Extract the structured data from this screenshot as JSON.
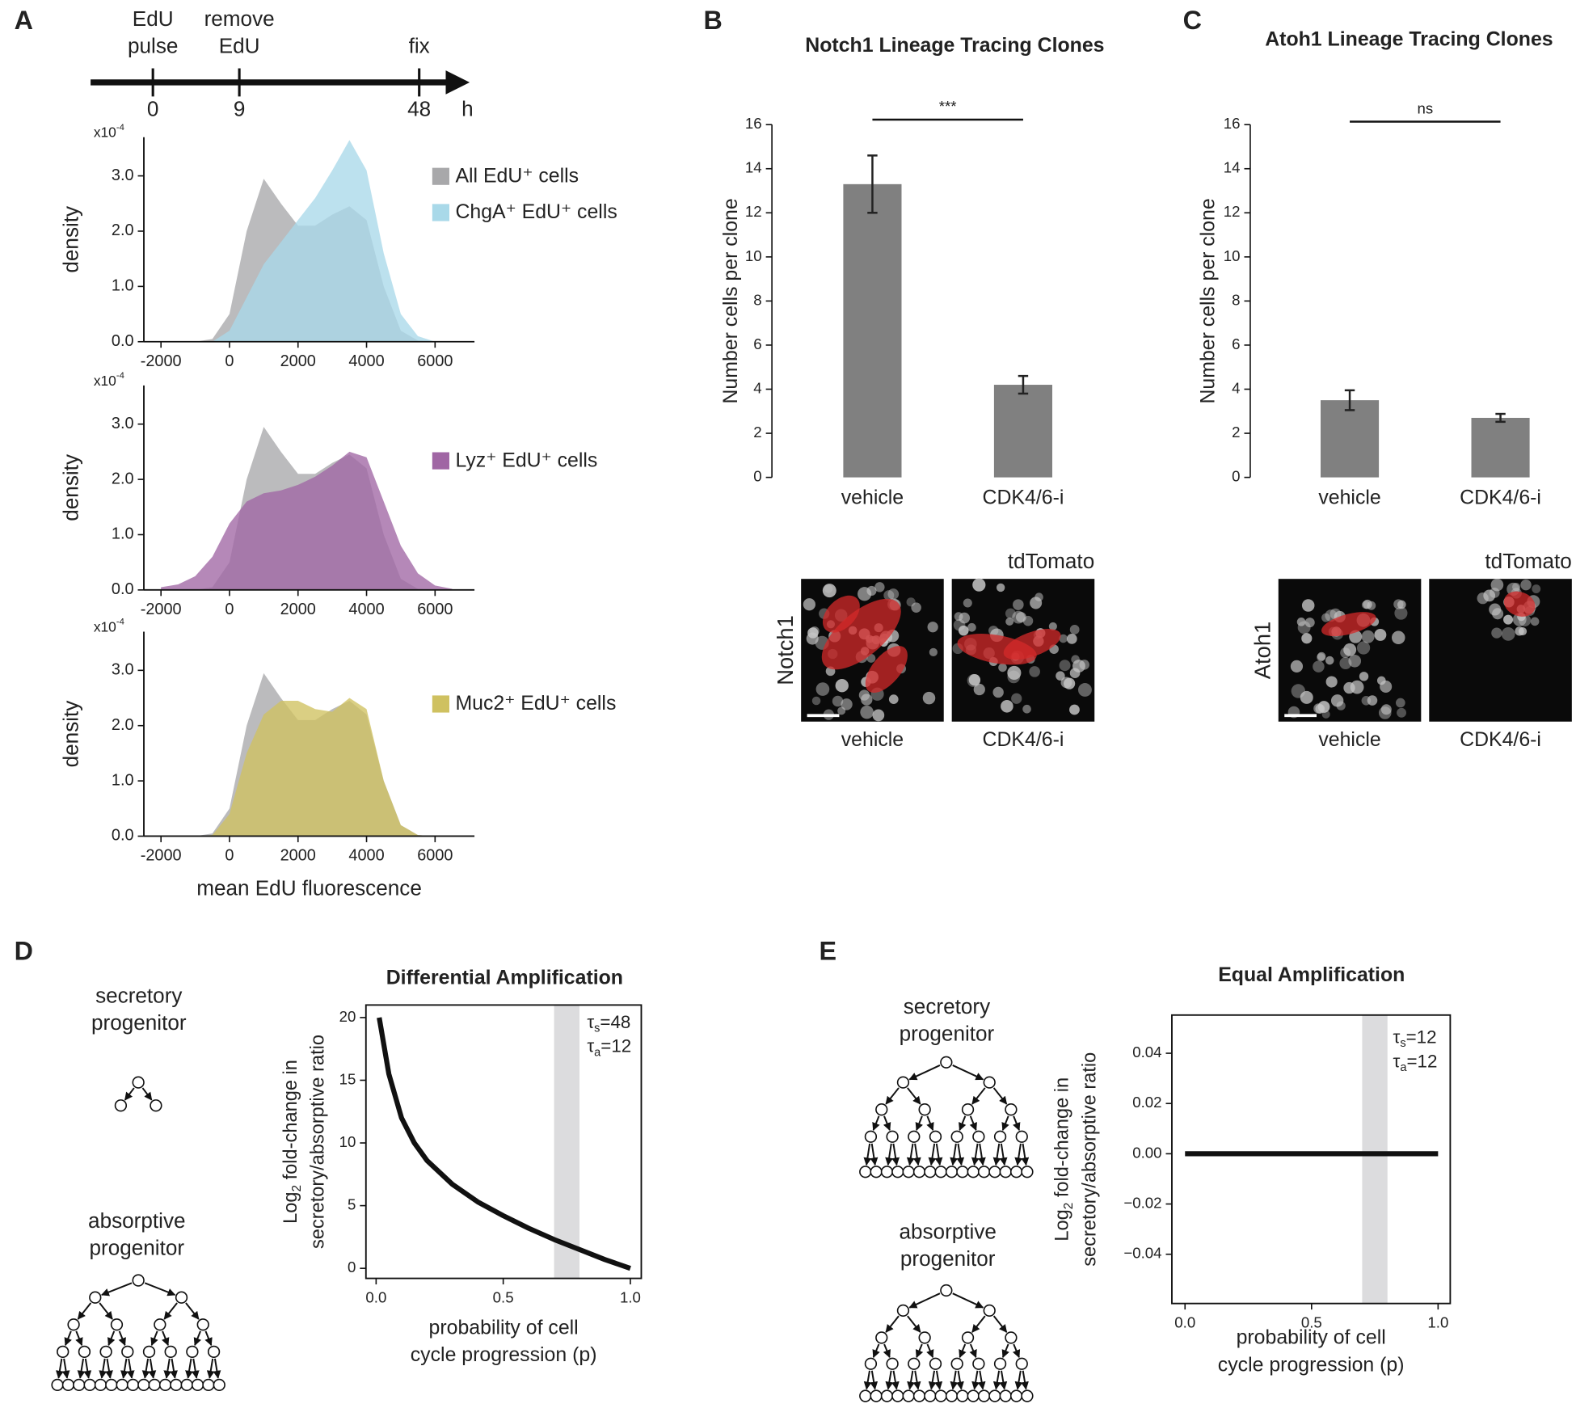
{
  "panel_labels": [
    "A",
    "B",
    "C",
    "D",
    "E"
  ],
  "timeline": {
    "events": [
      {
        "label": [
          "EdU",
          "pulse"
        ],
        "tick": 0
      },
      {
        "label": [
          "remove",
          "EdU"
        ],
        "tick": 9
      },
      {
        "label": [
          "fix"
        ],
        "tick": 48
      }
    ],
    "unit": "h"
  },
  "chart_data": [
    {
      "type": "area",
      "ylabel": "density",
      "y_scale": {
        "base": "x10",
        "exponent": "-4"
      },
      "x": [
        -2000,
        -1500,
        -1000,
        -500,
        0,
        500,
        1000,
        1500,
        2000,
        2500,
        3000,
        3500,
        4000,
        4500,
        5000,
        5500,
        6000,
        6500
      ],
      "series": [
        {
          "name": "All EdU⁺ cells",
          "color": "#a8a8aa",
          "values": [
            0,
            0,
            0,
            0.05,
            0.5,
            2.0,
            2.95,
            2.5,
            2.1,
            2.1,
            2.3,
            2.45,
            2.2,
            1.0,
            0.2,
            0.02,
            0,
            0
          ]
        },
        {
          "name": "ChgA⁺ EdU⁺ cells",
          "color": "#a9d9e9",
          "values": [
            0,
            0,
            0,
            0,
            0.2,
            0.8,
            1.4,
            1.8,
            2.2,
            2.6,
            3.1,
            3.65,
            3.1,
            1.6,
            0.5,
            0.1,
            0,
            0
          ]
        }
      ],
      "xlim": [
        -2500,
        7150
      ],
      "ylim": [
        0,
        3.7
      ],
      "xticks": [
        -2000,
        0,
        2000,
        4000,
        6000
      ],
      "yticks": [
        {
          "value": 0,
          "label": "0.0"
        },
        {
          "value": 1,
          "label": "1.0"
        },
        {
          "value": 2,
          "label": "2.0"
        },
        {
          "value": 3,
          "label": "3.0"
        }
      ]
    },
    {
      "type": "area",
      "ylabel": "density",
      "y_scale": {
        "base": "x10",
        "exponent": "-4"
      },
      "x": [
        -2000,
        -1500,
        -1000,
        -500,
        0,
        500,
        1000,
        1500,
        2000,
        2500,
        3000,
        3500,
        4000,
        4500,
        5000,
        5500,
        6000,
        6500
      ],
      "series": [
        {
          "color": "#a8a8aa",
          "values": [
            0,
            0,
            0,
            0.05,
            0.5,
            2.0,
            2.95,
            2.5,
            2.1,
            2.1,
            2.3,
            2.45,
            2.2,
            1.0,
            0.2,
            0.02,
            0,
            0
          ]
        },
        {
          "name": "Lyz⁺ EdU⁺ cells",
          "color": "#a066a4",
          "values": [
            0.05,
            0.1,
            0.25,
            0.6,
            1.2,
            1.6,
            1.75,
            1.8,
            1.9,
            2.05,
            2.25,
            2.5,
            2.4,
            1.6,
            0.8,
            0.3,
            0.08,
            0.02
          ]
        }
      ],
      "xlim": [
        -2500,
        7150
      ],
      "ylim": [
        0,
        3.7
      ],
      "xticks": [
        -2000,
        0,
        2000,
        4000,
        6000
      ],
      "yticks": [
        {
          "value": 0,
          "label": "0.0"
        },
        {
          "value": 1,
          "label": "1.0"
        },
        {
          "value": 2,
          "label": "2.0"
        },
        {
          "value": 3,
          "label": "3.0"
        }
      ]
    },
    {
      "type": "area",
      "ylabel": "density",
      "xlabel": "mean EdU fluorescence",
      "y_scale": {
        "base": "x10",
        "exponent": "-4"
      },
      "x": [
        -2000,
        -1500,
        -1000,
        -500,
        0,
        500,
        1000,
        1500,
        2000,
        2500,
        3000,
        3500,
        4000,
        4500,
        5000,
        5500,
        6000,
        6500
      ],
      "series": [
        {
          "color": "#a8a8aa",
          "values": [
            0,
            0,
            0,
            0.05,
            0.5,
            2.0,
            2.95,
            2.5,
            2.1,
            2.1,
            2.3,
            2.45,
            2.2,
            1.0,
            0.2,
            0.02,
            0,
            0
          ]
        },
        {
          "name": "Muc2⁺ EdU⁺ cells",
          "color": "#cfc160",
          "values": [
            0,
            0,
            0,
            0.02,
            0.4,
            1.5,
            2.2,
            2.45,
            2.45,
            2.3,
            2.25,
            2.5,
            2.3,
            1.0,
            0.2,
            0.02,
            0,
            0
          ]
        }
      ],
      "xlim": [
        -2500,
        7150
      ],
      "ylim": [
        0,
        3.7
      ],
      "xticks": [
        -2000,
        0,
        2000,
        4000,
        6000
      ],
      "yticks": [
        {
          "value": 0,
          "label": "0.0"
        },
        {
          "value": 1,
          "label": "1.0"
        },
        {
          "value": 2,
          "label": "2.0"
        },
        {
          "value": 3,
          "label": "3.0"
        }
      ]
    },
    {
      "type": "bar",
      "title": "Notch1 Lineage Tracing Clones",
      "ylabel": "Number cells per clone",
      "categories": [
        "vehicle",
        "CDK4/6-i"
      ],
      "values": [
        13.3,
        4.2
      ],
      "errors": [
        1.3,
        0.4
      ],
      "color": "#808080",
      "significance": "***",
      "ylim": [
        0,
        16
      ],
      "yticks": [
        0,
        2,
        4,
        6,
        8,
        10,
        12,
        14,
        16
      ]
    },
    {
      "type": "bar",
      "title": "Atoh1 Lineage Tracing Clones",
      "ylabel": "Number cells per clone",
      "categories": [
        "vehicle",
        "CDK4/6-i"
      ],
      "values": [
        3.5,
        2.7
      ],
      "errors": [
        0.45,
        0.18
      ],
      "color": "#808080",
      "significance": "ns",
      "ylim": [
        0,
        16
      ],
      "yticks": [
        0,
        2,
        4,
        6,
        8,
        10,
        12,
        14,
        16
      ]
    },
    {
      "type": "line",
      "title": "Differential Amplification",
      "ylabel": {
        "prefix": "Log",
        "subscript": "2",
        "rest": " fold-change in",
        "line2": "secretory/absorptive ratio"
      },
      "xlabel": [
        "probability of cell",
        "cycle progression (p)"
      ],
      "annotations": [
        {
          "symbol": "τ",
          "subscript": "s",
          "text": "=48"
        },
        {
          "symbol": "τ",
          "subscript": "a",
          "text": "=12"
        }
      ],
      "shaded_span": [
        0.7,
        0.8
      ],
      "x": [
        0.012,
        0.05,
        0.1,
        0.15,
        0.2,
        0.3,
        0.4,
        0.5,
        0.6,
        0.7,
        0.8,
        0.9,
        1.0
      ],
      "values": [
        20,
        15.5,
        12,
        10,
        8.6,
        6.7,
        5.3,
        4.2,
        3.2,
        2.3,
        1.5,
        0.7,
        0
      ],
      "color": "#111111",
      "xlim": [
        -0.04,
        1.043
      ],
      "ylim": [
        -0.8,
        21
      ],
      "xticks": [
        {
          "value": 0,
          "label": "0.0"
        },
        0.5,
        {
          "value": 1,
          "label": "1.0"
        }
      ],
      "yticks": [
        0,
        5,
        10,
        15,
        20
      ]
    },
    {
      "type": "line",
      "title": "Equal Amplification",
      "ylabel": {
        "prefix": "Log",
        "subscript": "2",
        "rest": " fold-change in",
        "line2": "secretory/absorptive ratio"
      },
      "xlabel": [
        "probability of cell",
        "cycle progression (p)"
      ],
      "annotations": [
        {
          "symbol": "τ",
          "subscript": "s",
          "text": "=12"
        },
        {
          "symbol": "τ",
          "subscript": "a",
          "text": "=12"
        }
      ],
      "shaded_span": [
        0.7,
        0.8
      ],
      "x": [
        0,
        1
      ],
      "values": [
        0,
        0
      ],
      "color": "#111111",
      "xlim": [
        -0.052,
        1.048
      ],
      "ylim": [
        -0.0596,
        0.0552
      ],
      "xticks": [
        {
          "value": 0,
          "label": "0.0"
        },
        0.5,
        {
          "value": 1,
          "label": "1.0"
        }
      ],
      "yticks": [
        0.04,
        0.02,
        {
          "value": 0,
          "label": "0.00"
        },
        {
          "value": -0.02,
          "label": "−0.02"
        },
        {
          "value": -0.04,
          "label": "−0.04"
        }
      ]
    }
  ],
  "micrographs": [
    {
      "marker": "Notch1",
      "channel": "tdTomato",
      "captions": [
        "vehicle",
        "CDK4/6-i"
      ]
    },
    {
      "marker": "Atoh1",
      "channel": "tdTomato",
      "captions": [
        "vehicle",
        "CDK4/6-i"
      ]
    }
  ],
  "diagrams": {
    "D": [
      {
        "label": [
          "secretory",
          "progenitor"
        ]
      },
      {
        "label": [
          "absorptive",
          "progenitor"
        ]
      }
    ],
    "E": [
      {
        "label": [
          "secretory",
          "progenitor"
        ]
      },
      {
        "label": [
          "absorptive",
          "progenitor"
        ]
      }
    ]
  }
}
